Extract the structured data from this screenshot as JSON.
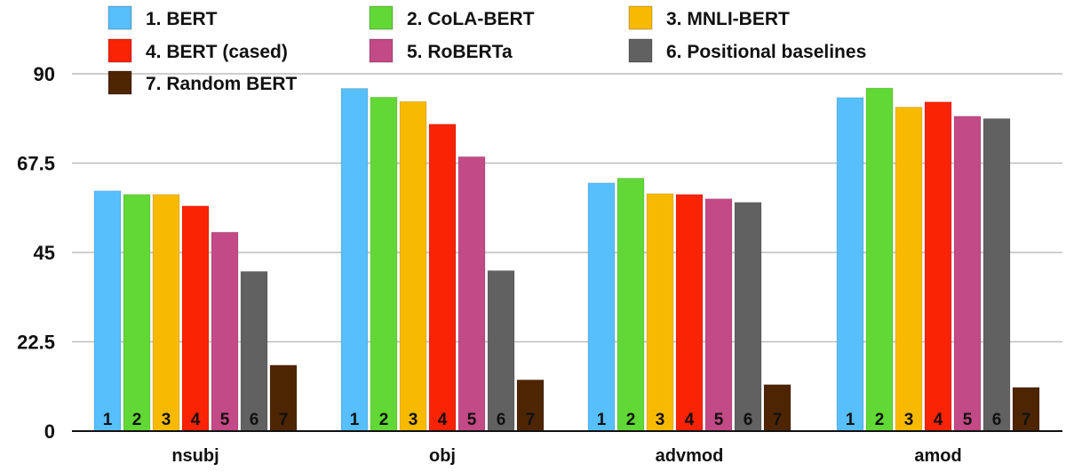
{
  "chart_data": {
    "type": "bar",
    "title": "",
    "xlabel": "",
    "ylabel": "",
    "categories": [
      "nsubj",
      "obj",
      "advmod",
      "amod"
    ],
    "ylim": [
      0,
      90
    ],
    "yticks": [
      "0",
      "22.5",
      "45",
      "67.5",
      "90"
    ],
    "grid": true,
    "legend_position": "top-left",
    "bar_labels": [
      "1",
      "2",
      "3",
      "4",
      "5",
      "6",
      "7"
    ],
    "series": [
      {
        "name": "1. BERT",
        "color": "#56bffc",
        "values": [
          60.5,
          86.3,
          62.5,
          84.0
        ]
      },
      {
        "name": "2. CoLA-BERT",
        "color": "#61d836",
        "values": [
          59.6,
          84.1,
          63.7,
          86.4
        ]
      },
      {
        "name": "3. MNLI-BERT",
        "color": "#f8ba00",
        "values": [
          59.6,
          83.0,
          59.8,
          81.6
        ]
      },
      {
        "name": "4. BERT (cased)",
        "color": "#fa2304",
        "values": [
          56.7,
          77.3,
          59.6,
          82.9
        ]
      },
      {
        "name": "5. RoBERTa",
        "color": "#c24a86",
        "values": [
          50.1,
          69.1,
          58.5,
          79.3
        ]
      },
      {
        "name": "6. Positional baselines",
        "color": "#616161",
        "values": [
          40.2,
          40.4,
          57.6,
          78.7
        ]
      },
      {
        "name": "7. Random BERT",
        "color": "#4e2503",
        "values": [
          16.6,
          12.9,
          11.7,
          11.0
        ]
      }
    ]
  }
}
